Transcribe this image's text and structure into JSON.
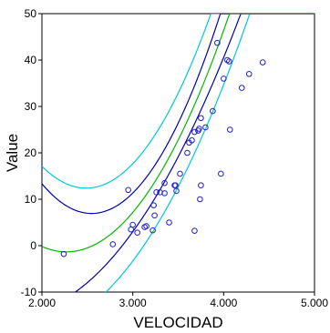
{
  "chart_data": {
    "type": "scatter",
    "title": "",
    "xlabel": "VELOCIDAD",
    "ylabel": "Value",
    "xlim": [
      2.0,
      5.0
    ],
    "ylim": [
      -10,
      50
    ],
    "grid": false,
    "legend": "none",
    "x_ticks": [
      2.0,
      3.0,
      4.0,
      5.0
    ],
    "x_tick_labels": [
      "2.000",
      "3.000",
      "4.000",
      "5.000"
    ],
    "y_ticks": [
      -10,
      0,
      10,
      20,
      30,
      40,
      50
    ],
    "y_tick_labels": [
      "-10",
      "0",
      "10",
      "20",
      "30",
      "40",
      "50"
    ],
    "colors": {
      "points": "#1f1fc8",
      "fit": "#00b800",
      "mean_ci": "#0000b0",
      "prediction_interval": "#00c8d8",
      "axis": "#000000"
    },
    "points": [
      [
        2.24,
        -1.8
      ],
      [
        2.78,
        0.3
      ],
      [
        2.95,
        12.0
      ],
      [
        2.98,
        3.5
      ],
      [
        3.0,
        4.5
      ],
      [
        3.05,
        2.8
      ],
      [
        3.13,
        4.0
      ],
      [
        3.15,
        4.2
      ],
      [
        3.22,
        3.3
      ],
      [
        3.23,
        8.7
      ],
      [
        3.24,
        6.5
      ],
      [
        3.26,
        11.5
      ],
      [
        3.3,
        11.5
      ],
      [
        3.35,
        11.3
      ],
      [
        3.35,
        13.5
      ],
      [
        3.4,
        5.0
      ],
      [
        3.46,
        13.0
      ],
      [
        3.47,
        13.0
      ],
      [
        3.48,
        11.8
      ],
      [
        3.52,
        15.5
      ],
      [
        3.6,
        20.0
      ],
      [
        3.62,
        22.2
      ],
      [
        3.65,
        22.7
      ],
      [
        3.68,
        3.2
      ],
      [
        3.68,
        24.5
      ],
      [
        3.72,
        24.8
      ],
      [
        3.73,
        25.2
      ],
      [
        3.74,
        10.0
      ],
      [
        3.75,
        27.5
      ],
      [
        3.75,
        13.0
      ],
      [
        3.8,
        25.5
      ],
      [
        3.88,
        29.0
      ],
      [
        3.93,
        43.7
      ],
      [
        3.97,
        15.5
      ],
      [
        4.0,
        36.0
      ],
      [
        4.04,
        40.0
      ],
      [
        4.06,
        39.7
      ],
      [
        4.07,
        25.0
      ],
      [
        4.2,
        34.0
      ],
      [
        4.28,
        37.0
      ],
      [
        4.43,
        39.5
      ]
    ],
    "fit_curve": {
      "intercept": 80.7,
      "slope": -72.3,
      "quad": 15.93
    },
    "mean_ci_halfwidth": {
      "base": 3.5,
      "scale": 5.5,
      "center": 3.35
    },
    "prediction_halfwidth": {
      "base": 10.0,
      "scale": 4.0,
      "center": 3.35
    }
  }
}
